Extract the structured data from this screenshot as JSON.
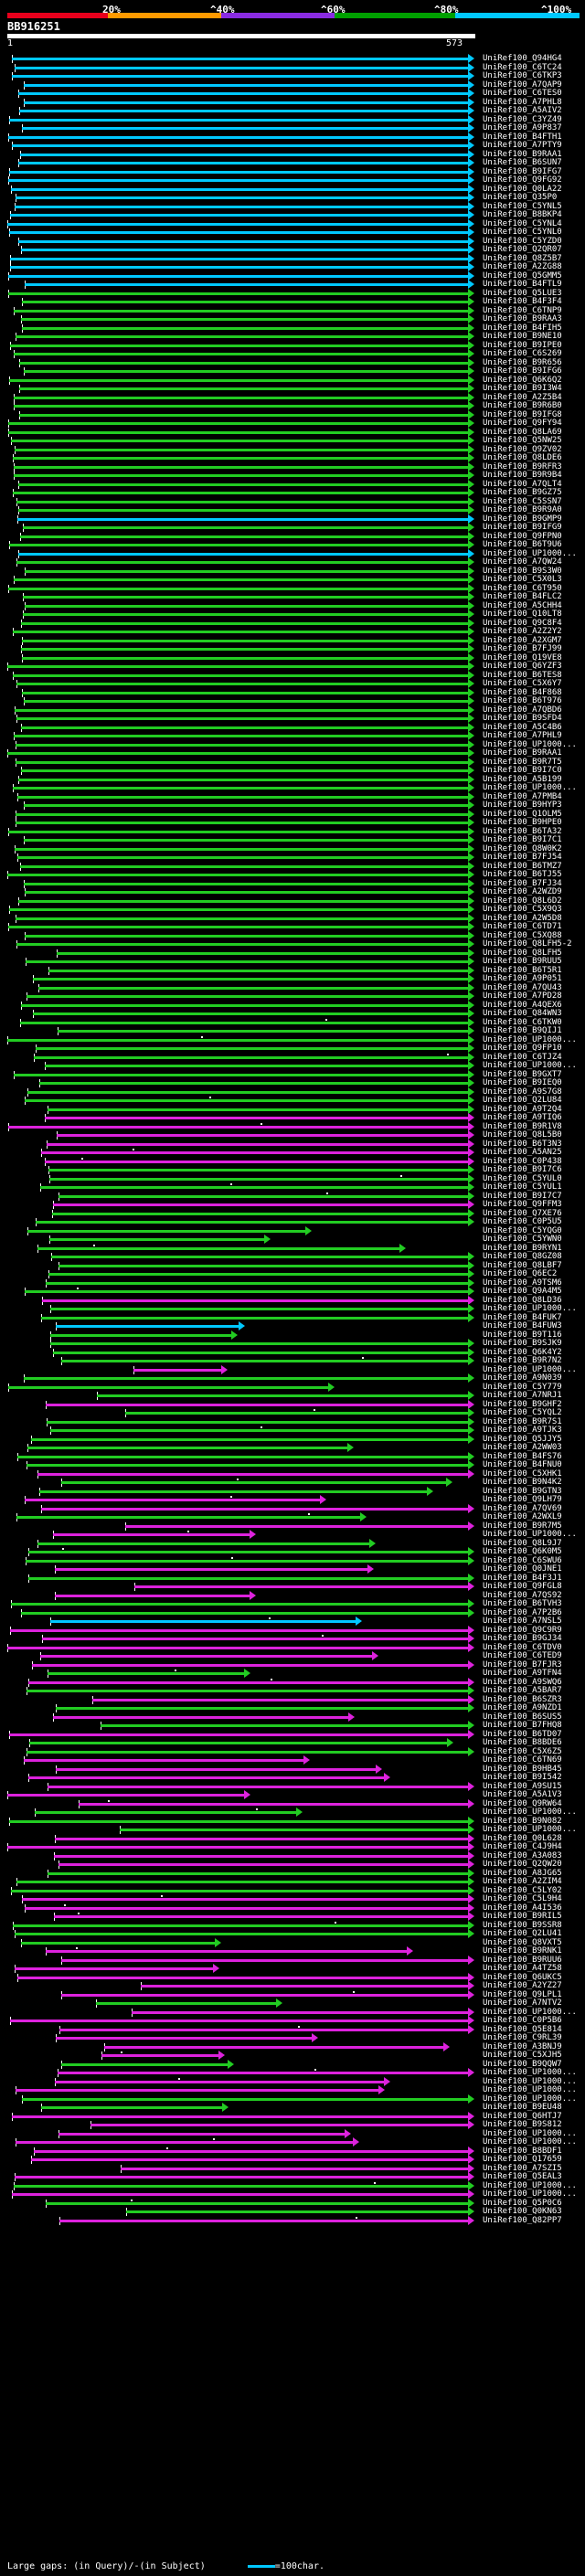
{
  "scale": {
    "labels": [
      "20%",
      "^40%",
      "^60%",
      "^80%",
      "^100%"
    ],
    "colors": [
      "#e8001c",
      "#ff9a00",
      "#8a2be2",
      "#00a000",
      "#00c8ff"
    ]
  },
  "query": {
    "title": "BB916251",
    "start": "1",
    "end": "573"
  },
  "footer": {
    "gaps_label": "Large gaps: ",
    "in_query": "(in Query)",
    "in_subject": "/-(in Subject)",
    "legend": "=100char."
  },
  "colors": {
    "cyan": "#00c8ff",
    "green": "#22cc22",
    "magenta": "#dd22dd"
  },
  "hits": [
    "UniRef100_Q94HG4",
    "UniRef100_C6TC24",
    "UniRef100_C6TKP3",
    "UniRef100_A7QAP9",
    "UniRef100_C6TES0",
    "UniRef100_A7PHL8",
    "UniRef100_A5AIV2",
    "UniRef100_C3YZ49",
    "UniRef100_A9P837",
    "UniRef100_B4FTH1",
    "UniRef100_A7PTY9",
    "UniRef100_B9RAA1",
    "UniRef100_B6SUN7",
    "UniRef100_B9IFG7",
    "UniRef100_Q9FG92",
    "UniRef100_Q0LA22",
    "UniRef100_Q35P0",
    "UniRef100_C5YNL5",
    "UniRef100_B8BKP4",
    "UniRef100_C5YNL4",
    "UniRef100_C5YNL0",
    "UniRef100_C5YZD0",
    "UniRef100_Q2QR07",
    "UniRef100_Q8Z5B7",
    "UniRef100_A2ZG88",
    "UniRef100_Q5GMM5",
    "UniRef100_B4FTL9",
    "UniRef100_Q5LUE3",
    "UniRef100_B4F3F4",
    "UniRef100_C6TNP9",
    "UniRef100_B9RAA3",
    "UniRef100_B4FIH5",
    "UniRef100_B9NE10",
    "UniRef100_B9IPE0",
    "UniRef100_C6S269",
    "UniRef100_B9R656",
    "UniRef100_B9IFG6",
    "UniRef100_Q6K6Q2",
    "UniRef100_B9I3W4",
    "UniRef100_A2Z5B4",
    "UniRef100_B9R6B0",
    "UniRef100_B9IFG8",
    "UniRef100_Q9FY94",
    "UniRef100_Q8LA69",
    "UniRef100_Q5NW25",
    "UniRef100_Q9ZV02",
    "UniRef100_Q8LDE6",
    "UniRef100_B9RFR3",
    "UniRef100_B9R9B4",
    "UniRef100_A7QLT4",
    "UniRef100_B9GZ75",
    "UniRef100_C5SSN7",
    "UniRef100_B9R9A0",
    "UniRef100_B9GMP9",
    "UniRef100_B9IFG9",
    "UniRef100_Q9FPN0",
    "UniRef100_B6T9U6",
    "UniRef100_UP1000...",
    "UniRef100_A7QW24",
    "UniRef100_B9S3W0",
    "UniRef100_C5X0L3",
    "UniRef100_C6T950",
    "UniRef100_B4FLC2",
    "UniRef100_A5CHH4",
    "UniRef100_Q10LT8",
    "UniRef100_Q9C8F4",
    "UniRef100_A2Z2Y2",
    "UniRef100_A2XGM7",
    "UniRef100_B7FJ99",
    "UniRef100_Q19VE8",
    "UniRef100_Q6YZF3",
    "UniRef100_B6TES8",
    "UniRef100_C5X6Y7",
    "UniRef100_B4F868",
    "UniRef100_B6T976",
    "UniRef100_A7QBD6",
    "UniRef100_B9SFD4",
    "UniRef100_A5C4B6",
    "UniRef100_A7PHL9",
    "UniRef100_UP1000...",
    "UniRef100_B9RAA1",
    "UniRef100_B9R7T5",
    "UniRef100_B9I7C0",
    "UniRef100_A5B199",
    "UniRef100_UP1000...",
    "UniRef100_A7PMB4",
    "UniRef100_B9HYP3",
    "UniRef100_Q1OLM5",
    "UniRef100_B9HPE0",
    "UniRef100_B6TA32",
    "UniRef100_B9I7C1",
    "UniRef100_Q8W0K2",
    "UniRef100_B7FJ54",
    "UniRef100_B6TMZ7",
    "UniRef100_B6TJ55",
    "UniRef100_B7FJ34",
    "UniRef100_A2WZD9",
    "UniRef100_Q8L6D2",
    "UniRef100_C5X9Q3",
    "UniRef100_A2W5D8",
    "UniRef100_C6TD71",
    "UniRef100_C5XQ88",
    "UniRef100_Q8LFH5-2",
    "UniRef100_Q8LFH5",
    "UniRef100_B9RUU5",
    "UniRef100_B6T5R1",
    "UniRef100_A9P051",
    "UniRef100_A7QU43",
    "UniRef100_A7PD28",
    "UniRef100_A4QEX6",
    "UniRef100_Q84WN3",
    "UniRef100_C6TKW0",
    "UniRef100_B9QIJ1",
    "UniRef100_UP1000...",
    "UniRef100_Q9FP10",
    "UniRef100_C6TJZ4",
    "UniRef100_UP1000...",
    "UniRef100_B9GXT7",
    "UniRef100_B9IEQ0",
    "UniRef100_A9S7G8",
    "UniRef100_Q2LU84",
    "UniRef100_A9T2Q4",
    "UniRef100_A9TIQ6",
    "UniRef100_B9R1V8",
    "UniRef100_Q8L5B0",
    "UniRef100_B6T3N3",
    "UniRef100_A5AN25",
    "UniRef100_C0P438",
    "UniRef100_B9I7C6",
    "UniRef100_C5YUL0",
    "UniRef100_C5YUL1",
    "UniRef100_B9I7C7",
    "UniRef100_Q9FFM3",
    "UniRef100_Q7XE76",
    "UniRef100_C0P5U5",
    "UniRef100_C5YQG0",
    "UniRef100_C5YWN0",
    "UniRef100_B9RYN1",
    "UniRef100_Q8GZ08",
    "UniRef100_Q8LBF7",
    "UniRef100_Q6EC2",
    "UniRef100_A9TSM6",
    "UniRef100_Q9A4M5",
    "UniRef100_Q8LD36",
    "UniRef100_UP1000...",
    "UniRef100_B4FUK7",
    "UniRef100_B4FUW3",
    "UniRef100_B9T116",
    "UniRef100_B9SJK9",
    "UniRef100_Q6K4Y2",
    "UniRef100_B9R7N2",
    "UniRef100_UP1000...",
    "UniRef100_A9N039",
    "UniRef100_C5Y779",
    "UniRef100_A7NRJ1",
    "UniRef100_B9GHF2",
    "UniRef100_C5YQL2",
    "UniRef100_B9R7S1",
    "UniRef100_A9TJK3",
    "UniRef100_Q5JJY5",
    "UniRef100_A2WW03",
    "UniRef100_B4FS76",
    "UniRef100_B4FNU0",
    "UniRef100_C5XHK1",
    "UniRef100_B9N4K2",
    "UniRef100_B9GTN3",
    "UniRef100_Q9LH79",
    "UniRef100_A7QV69",
    "UniRef100_A2WXL9",
    "UniRef100_B9R7M5",
    "UniRef100_UP1000...",
    "UniRef100_Q8L9J7",
    "UniRef100_Q6K0M5",
    "UniRef100_C6SWU6",
    "UniRef100_Q0JNE1",
    "UniRef100_B4F3J1",
    "UniRef100_Q9FGL8",
    "UniRef100_A7QS92",
    "UniRef100_B6TVH3",
    "UniRef100_A7P2B6",
    "UniRef100_A7NSL5",
    "UniRef100_Q9C9R9",
    "UniRef100_B9GJ34",
    "UniRef100_C6TDV0",
    "UniRef100_C6TED9",
    "UniRef100_B7FJR3",
    "UniRef100_A9TFN4",
    "UniRef100_A9SWQ6",
    "UniRef100_A5BAR7",
    "UniRef100_B6SZR3",
    "UniRef100_A9NZD1",
    "UniRef100_B6SUS5",
    "UniRef100_B7FHQ8",
    "UniRef100_B6TD07",
    "UniRef100_B8BDE6",
    "UniRef100_C5X6Z5",
    "UniRef100_C6TN69",
    "UniRef100_B9HB45",
    "UniRef100_B9I542",
    "UniRef100_A9SU15",
    "UniRef100_A5A1V3",
    "UniRef100_Q9RW64",
    "UniRef100_UP1000...",
    "UniRef100_B9N082",
    "UniRef100_UP1000...",
    "UniRef100_Q0L628",
    "UniRef100_C4J9H4",
    "UniRef100_A3A083",
    "UniRef100_Q2QW20",
    "UniRef100_A8JG65",
    "UniRef100_A2ZIM4",
    "UniRef100_C5LY02",
    "UniRef100_C5L9H4",
    "UniRef100_A4I536",
    "UniRef100_B9RIL5",
    "UniRef100_B9SSR8",
    "UniRef100_Q2LU41",
    "UniRef100_Q8VXT5",
    "UniRef100_B9RNK1",
    "UniRef100_B9RUU6",
    "UniRef100_A4TZ58",
    "UniRef100_Q6UKC5",
    "UniRef100_A2YZ27",
    "UniRef100_Q9LPL1",
    "UniRef100_A7NTV2",
    "UniRef100_UP1000...",
    "UniRef100_C0P5B6",
    "UniRef100_Q5E814",
    "UniRef100_C9RL39",
    "UniRef100_A3BNJ9",
    "UniRef100_C5XJH5",
    "UniRef100_B9QQW7",
    "UniRef100_UP1000...",
    "UniRef100_UP1000...",
    "UniRef100_UP1000...",
    "UniRef100_UP1000...",
    "UniRef100_B9EU48",
    "UniRef100_Q6HTJ7",
    "UniRef100_B9S812",
    "UniRef100_UP1000...",
    "UniRef100_UP1000...",
    "UniRef100_B8BDF1",
    "UniRef100_Q17659",
    "UniRef100_A7SZI5",
    "UniRef100_Q5EAL3",
    "UniRef100_UP1000...",
    "UniRef100_UP1000...",
    "UniRef100_Q5P0C6",
    "UniRef100_Q0KN63",
    "UniRef100_Q82PP7"
  ]
}
